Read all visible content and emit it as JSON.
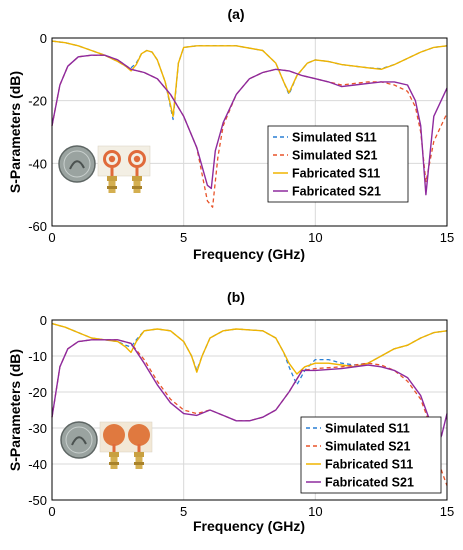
{
  "chart_data": [
    {
      "type": "line",
      "panel_label": "(a)",
      "xlabel": "Frequency (GHz)",
      "ylabel": "S-Parameters (dB)",
      "xlim": [
        0,
        15
      ],
      "ylim": [
        -60,
        0
      ],
      "xticks": [
        0,
        5,
        10,
        15
      ],
      "yticks": [
        0,
        -20,
        -40,
        -60
      ],
      "legend_position": "center-right",
      "inset_photo": "antenna-photo",
      "series": [
        {
          "name": "Simulated S11",
          "color": "#2a7fd4",
          "dash": "dashed",
          "x": [
            0,
            0.5,
            1,
            1.5,
            2,
            2.5,
            2.8,
            3,
            3.2,
            3.4,
            3.6,
            3.8,
            4,
            4.3,
            4.6,
            4.8,
            5,
            5.5,
            6,
            7,
            8,
            8.5,
            8.8,
            9,
            9.3,
            9.7,
            10,
            10.5,
            11,
            11.5,
            12,
            12.5,
            13,
            13.5,
            14,
            14.5,
            15
          ],
          "y": [
            -1,
            -1.5,
            -2.5,
            -4,
            -5.5,
            -7.5,
            -9,
            -9.5,
            -8,
            -5,
            -4,
            -4.5,
            -7,
            -14,
            -26,
            -8,
            -3,
            -2.5,
            -2.5,
            -2.5,
            -4,
            -8,
            -14,
            -18,
            -12,
            -8,
            -7,
            -7.5,
            -8.5,
            -9,
            -9.5,
            -9.8,
            -8.5,
            -6.5,
            -4.5,
            -3,
            -2.5
          ]
        },
        {
          "name": "Simulated S21",
          "color": "#e8542a",
          "dash": "dashed",
          "x": [
            0,
            0.3,
            0.6,
            1,
            1.5,
            2,
            2.5,
            3,
            3.5,
            4,
            4.5,
            5,
            5.5,
            5.9,
            6.1,
            6.3,
            6.5,
            7,
            7.5,
            8,
            8.5,
            9,
            9.5,
            10,
            10.5,
            11,
            11.5,
            12,
            12.5,
            13,
            13.5,
            13.8,
            14,
            14.2,
            14.5,
            15
          ],
          "y": [
            -28,
            -15,
            -9,
            -6,
            -5.5,
            -5.5,
            -7,
            -10,
            -11,
            -13,
            -18,
            -25,
            -35,
            -52,
            -54,
            -38,
            -28,
            -18,
            -13,
            -11,
            -10,
            -10.5,
            -12,
            -13,
            -14,
            -15,
            -14.5,
            -14,
            -14,
            -15,
            -17,
            -22,
            -30,
            -46,
            -33,
            -24
          ]
        },
        {
          "name": "Fabricated S11",
          "color": "#f0b400",
          "dash": "solid",
          "x": [
            0,
            0.5,
            1,
            1.5,
            2,
            2.5,
            2.8,
            3,
            3.2,
            3.4,
            3.6,
            3.8,
            4,
            4.3,
            4.6,
            4.8,
            5,
            5.5,
            6,
            7,
            8,
            8.5,
            8.8,
            9,
            9.3,
            9.7,
            10,
            10.5,
            11,
            11.5,
            12,
            12.5,
            13,
            13.5,
            14,
            14.5,
            15
          ],
          "y": [
            -1,
            -1.5,
            -2.5,
            -4,
            -5.5,
            -7.5,
            -9,
            -10.5,
            -8.5,
            -5,
            -4,
            -4.5,
            -7,
            -14,
            -25,
            -8,
            -3,
            -2.5,
            -2.5,
            -2.5,
            -4,
            -8,
            -14,
            -17.5,
            -12,
            -8,
            -7,
            -7.5,
            -8.5,
            -9,
            -9.5,
            -10,
            -8.5,
            -6.5,
            -4.5,
            -3,
            -2.5
          ]
        },
        {
          "name": "Fabricated S21",
          "color": "#8e2a9e",
          "dash": "solid",
          "x": [
            0,
            0.3,
            0.6,
            1,
            1.5,
            2,
            2.5,
            3,
            3.5,
            4,
            4.5,
            5,
            5.5,
            5.9,
            6.05,
            6.2,
            6.5,
            7,
            7.5,
            8,
            8.5,
            9,
            9.5,
            10,
            10.5,
            11,
            11.5,
            12,
            12.5,
            13,
            13.5,
            13.8,
            14,
            14.2,
            14.5,
            15
          ],
          "y": [
            -28,
            -15,
            -9,
            -6,
            -5.5,
            -5.5,
            -7,
            -10,
            -11,
            -13,
            -18,
            -25,
            -35,
            -47,
            -48,
            -36,
            -27,
            -18,
            -13,
            -11,
            -10,
            -10.5,
            -12,
            -13,
            -14,
            -15.5,
            -15,
            -14.5,
            -14,
            -14,
            -15,
            -20,
            -28,
            -50,
            -25,
            -16
          ]
        }
      ]
    },
    {
      "type": "line",
      "panel_label": "(b)",
      "xlabel": "Frequency (GHz)",
      "ylabel": "S-Parameters (dB)",
      "xlim": [
        0,
        15
      ],
      "ylim": [
        -50,
        0
      ],
      "xticks": [
        0,
        5,
        10,
        15
      ],
      "yticks": [
        0,
        -10,
        -20,
        -30,
        -40,
        -50
      ],
      "legend_position": "bottom-right",
      "inset_photo": "antenna-photo",
      "series": [
        {
          "name": "Simulated S11",
          "color": "#2a7fd4",
          "dash": "dashed",
          "x": [
            0,
            0.5,
            1,
            1.5,
            2,
            2.5,
            2.8,
            3,
            3.2,
            3.5,
            4,
            4.5,
            5,
            5.3,
            5.5,
            5.7,
            6,
            6.5,
            7,
            8,
            8.5,
            8.8,
            9,
            9.3,
            9.6,
            10,
            10.5,
            11,
            11.5,
            12,
            12.5,
            13,
            13.5,
            14,
            14.5,
            15
          ],
          "y": [
            -1,
            -2,
            -3.5,
            -5,
            -5.5,
            -6,
            -7,
            -7.5,
            -5.5,
            -3,
            -2.5,
            -3,
            -6,
            -10,
            -14,
            -10,
            -5,
            -3,
            -2.5,
            -3,
            -5,
            -9,
            -13,
            -18,
            -14,
            -11,
            -11,
            -12,
            -12.5,
            -12,
            -10,
            -8,
            -7,
            -5,
            -3.5,
            -3
          ]
        },
        {
          "name": "Simulated S21",
          "color": "#e8542a",
          "dash": "dashed",
          "x": [
            0,
            0.3,
            0.6,
            1,
            1.5,
            2,
            2.5,
            3,
            3.5,
            4,
            4.5,
            5,
            5.5,
            6,
            6.5,
            7,
            7.5,
            8,
            8.5,
            9,
            9.5,
            10,
            11,
            12,
            12.5,
            13,
            13.5,
            14,
            14.3,
            14.6,
            14.8,
            15
          ],
          "y": [
            -27,
            -13,
            -8,
            -6,
            -5.5,
            -5.5,
            -5.5,
            -6.5,
            -11,
            -17,
            -22,
            -25,
            -26,
            -25,
            -26.5,
            -28,
            -28,
            -27,
            -25,
            -20,
            -14,
            -13.5,
            -13,
            -12,
            -12.5,
            -14,
            -17,
            -22,
            -28,
            -35,
            -42,
            -46
          ]
        },
        {
          "name": "Fabricated S11",
          "color": "#f0b400",
          "dash": "solid",
          "x": [
            0,
            0.5,
            1,
            1.5,
            2,
            2.5,
            2.8,
            3,
            3.2,
            3.5,
            4,
            4.5,
            5,
            5.3,
            5.5,
            5.7,
            6,
            6.5,
            7,
            8,
            8.5,
            8.8,
            9,
            9.3,
            9.6,
            10,
            10.5,
            11,
            11.5,
            12,
            12.5,
            13,
            13.5,
            14,
            14.5,
            15
          ],
          "y": [
            -1,
            -2,
            -3.5,
            -5,
            -5.5,
            -6,
            -7.5,
            -9,
            -6,
            -3,
            -2.5,
            -3,
            -6,
            -10,
            -14.5,
            -10,
            -5,
            -3,
            -2.5,
            -3,
            -5,
            -9,
            -12,
            -15,
            -13,
            -12,
            -12,
            -12.5,
            -13,
            -12,
            -10,
            -8,
            -7,
            -5,
            -3.5,
            -3
          ]
        },
        {
          "name": "Fabricated S21",
          "color": "#8e2a9e",
          "dash": "solid",
          "x": [
            0,
            0.3,
            0.6,
            1,
            1.5,
            2,
            2.5,
            3,
            3.5,
            4,
            4.5,
            5,
            5.5,
            6,
            6.5,
            7,
            7.5,
            8,
            8.5,
            9,
            9.5,
            10,
            11,
            12,
            12.5,
            13,
            13.5,
            14,
            14.3,
            14.6,
            14.8,
            15
          ],
          "y": [
            -27,
            -13,
            -8,
            -6,
            -5.5,
            -5.5,
            -5.5,
            -6.5,
            -12,
            -18,
            -23,
            -26,
            -26.5,
            -25,
            -26.5,
            -28,
            -28,
            -27,
            -25,
            -20,
            -14,
            -14,
            -13.5,
            -12.5,
            -13,
            -14,
            -16,
            -21,
            -27,
            -35,
            -32,
            -26
          ]
        }
      ]
    }
  ]
}
